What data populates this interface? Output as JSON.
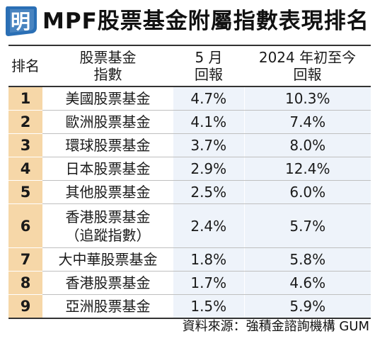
{
  "header": {
    "logo_text": "明",
    "title": "MPF股票基金附屬指數表現排名"
  },
  "table": {
    "headers": {
      "rank": "排名",
      "fund_line1": "股票基金",
      "fund_line2": "指數",
      "may_line1": "5 月",
      "may_line2": "回報",
      "ytd_line1": "2024 年初至今",
      "ytd_line2": "回報"
    },
    "rows": [
      {
        "rank": "1",
        "fund": "美國股票基金",
        "fund2": "",
        "may": "4.7%",
        "ytd": "10.3%"
      },
      {
        "rank": "2",
        "fund": "歐洲股票基金",
        "fund2": "",
        "may": "4.1%",
        "ytd": "7.4%"
      },
      {
        "rank": "3",
        "fund": "環球股票基金",
        "fund2": "",
        "may": "3.7%",
        "ytd": "8.0%"
      },
      {
        "rank": "4",
        "fund": "日本股票基金",
        "fund2": "",
        "may": "2.9%",
        "ytd": "12.4%"
      },
      {
        "rank": "5",
        "fund": "其他股票基金",
        "fund2": "",
        "may": "2.5%",
        "ytd": "6.0%"
      },
      {
        "rank": "6",
        "fund": "香港股票基金",
        "fund2": "（追蹤指數）",
        "may": "2.4%",
        "ytd": "5.7%"
      },
      {
        "rank": "7",
        "fund": "大中華股票基金",
        "fund2": "",
        "may": "1.8%",
        "ytd": "5.8%"
      },
      {
        "rank": "8",
        "fund": "香港股票基金",
        "fund2": "",
        "may": "1.7%",
        "ytd": "4.6%"
      },
      {
        "rank": "9",
        "fund": "亞洲股票基金",
        "fund2": "",
        "may": "1.5%",
        "ytd": "5.9%"
      }
    ]
  },
  "source": "資料來源：強積金諮詢機構 GUM",
  "colors": {
    "logo_blue": "#2a6fb5",
    "rank_bg": "#f6d7a8",
    "value_bg": "#eef3fa"
  }
}
